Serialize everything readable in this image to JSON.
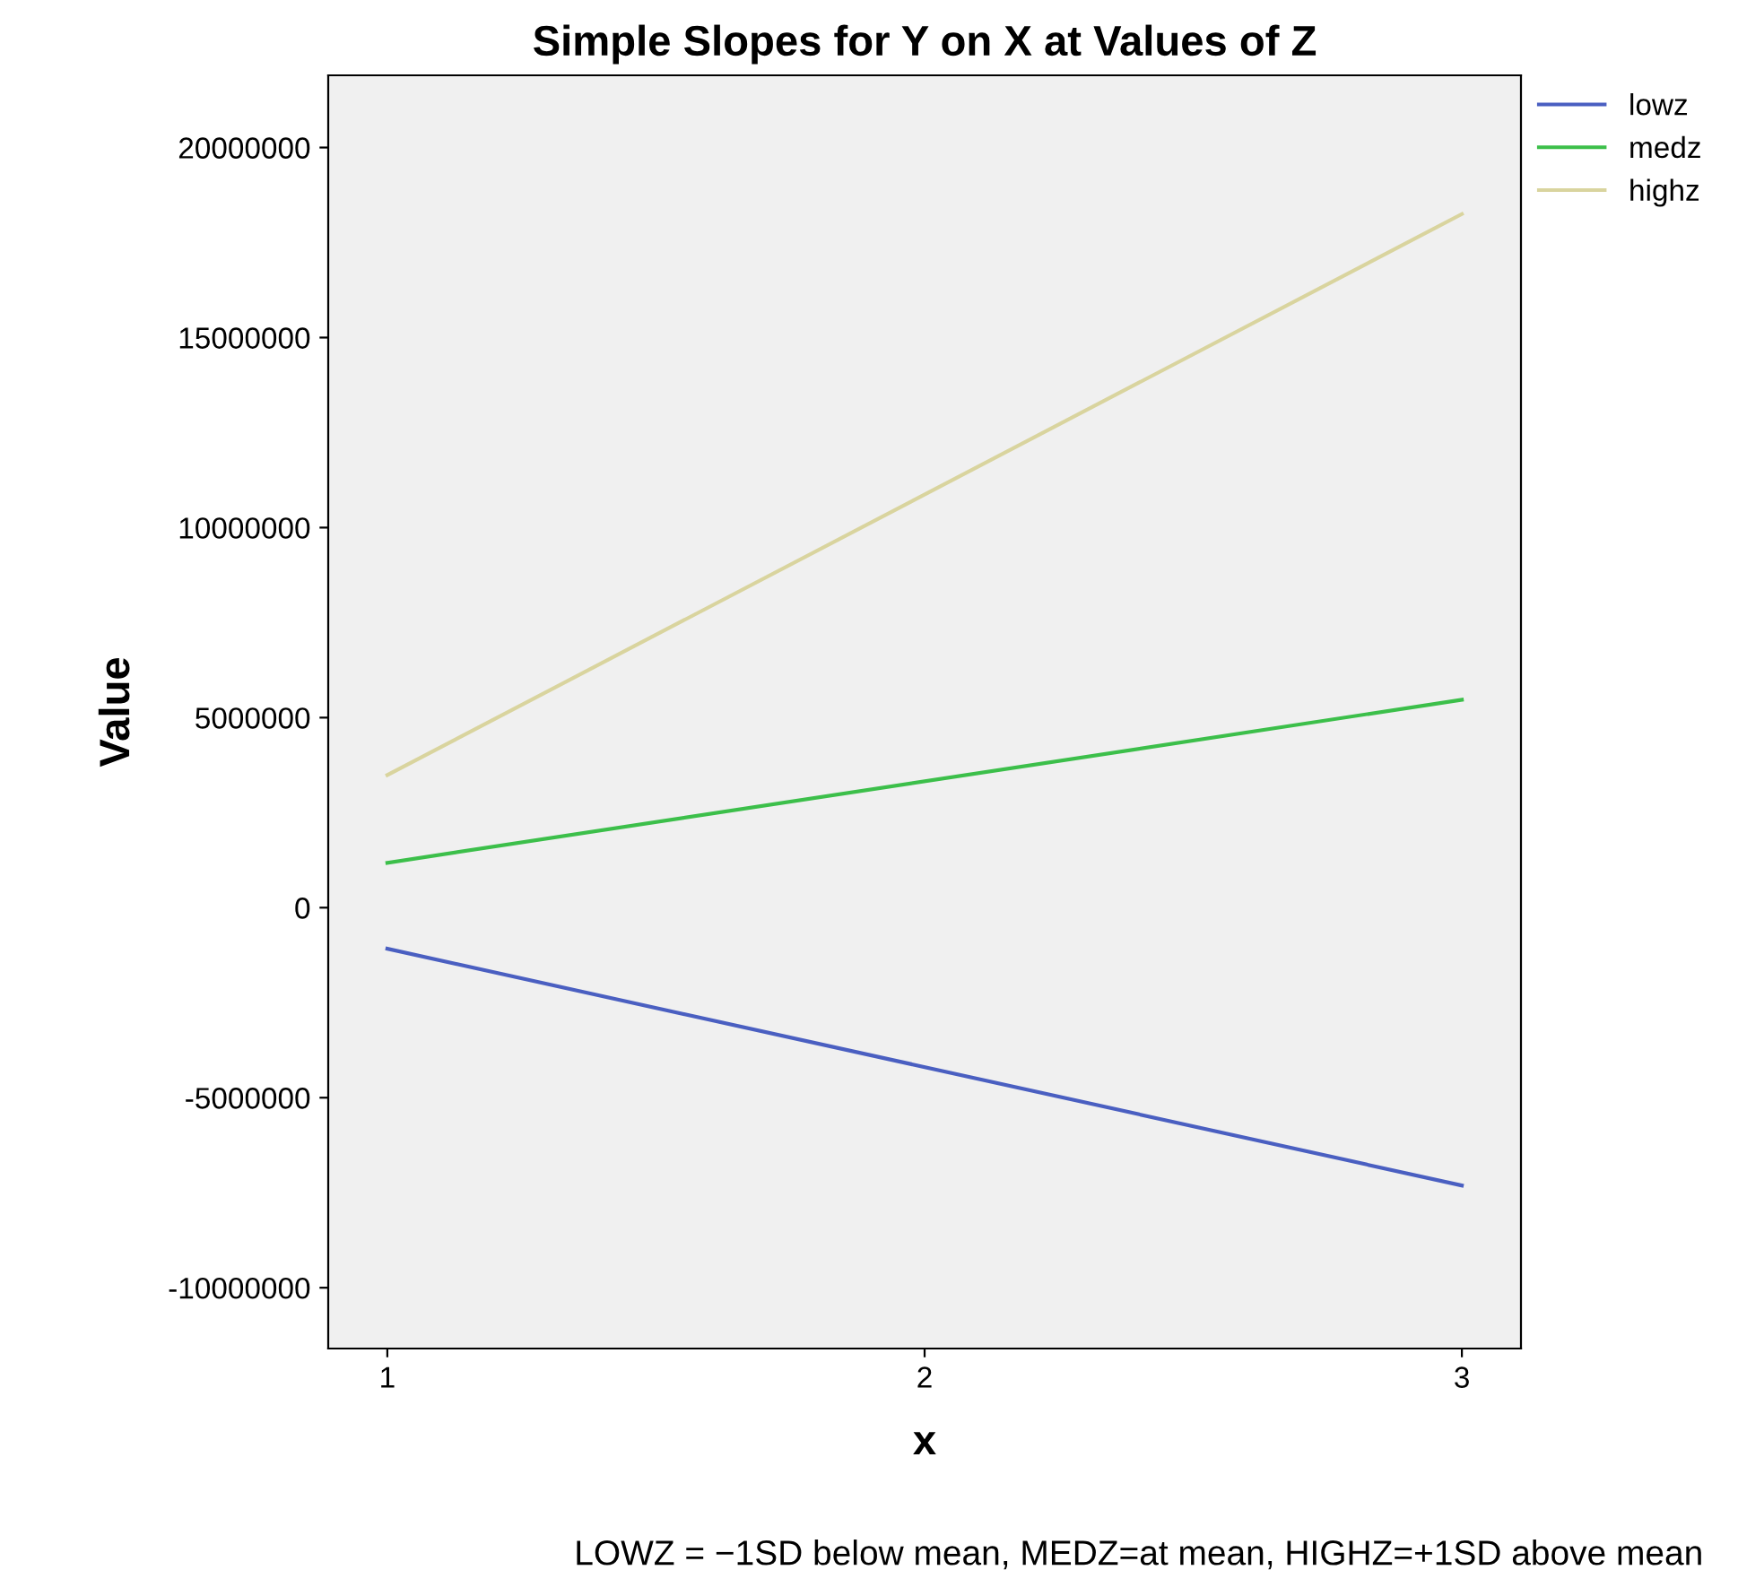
{
  "chart_data": {
    "type": "line",
    "title": "Simple Slopes for Y on X at Values of Z",
    "xlabel": "x",
    "ylabel": "Value",
    "x": [
      1,
      3
    ],
    "series": [
      {
        "name": "lowz",
        "color": "#4a5fc1",
        "values": [
          -1080000,
          -7310000
        ]
      },
      {
        "name": "medz",
        "color": "#3cbf4a",
        "values": [
          1180000,
          5470000
        ]
      },
      {
        "name": "highz",
        "color": "#d9d49e",
        "values": [
          3490000,
          18250000
        ]
      }
    ],
    "xlim": [
      0.89,
      3.11
    ],
    "xticks": [
      1,
      2,
      3
    ],
    "ylim": [
      -11600000,
      21900000
    ],
    "yticks": [
      -10000000,
      -5000000,
      0,
      5000000,
      10000000,
      15000000,
      20000000
    ],
    "grid": false,
    "legend": "top right",
    "marker": "none",
    "line_style": "solid",
    "annotations": [
      "LOWZ = −1SD below mean, MEDZ=at mean, HIGHZ=+1SD above mean"
    ]
  }
}
